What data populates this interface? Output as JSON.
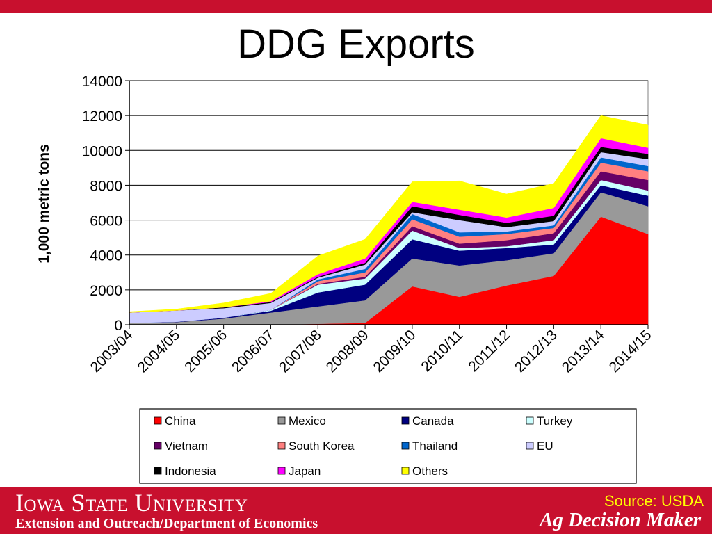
{
  "slide": {
    "title": "DDG Exports",
    "university": "Iowa State University",
    "department": "Extension and Outreach/Department of Economics",
    "source": "Source: USDA",
    "brand": "Ag Decision Maker",
    "accent_color": "#c8102e"
  },
  "chart_data": {
    "type": "area",
    "stacked": true,
    "title": "",
    "xlabel": "",
    "ylabel": "1,000 metric tons",
    "ylim": [
      0,
      14000
    ],
    "yticks": [
      0,
      2000,
      4000,
      6000,
      8000,
      10000,
      12000,
      14000
    ],
    "grid": true,
    "legend_position": "bottom",
    "categories": [
      "2003/04",
      "2004/05",
      "2005/06",
      "2006/07",
      "2007/08",
      "2008/09",
      "2009/10",
      "2010/11",
      "2011/12",
      "2012/13",
      "2013/14",
      "2014/15"
    ],
    "series": [
      {
        "name": "China",
        "color": "#ff0000",
        "values": [
          0,
          0,
          0,
          0,
          50,
          100,
          2200,
          1600,
          2250,
          2800,
          6200,
          5200
        ]
      },
      {
        "name": "Mexico",
        "color": "#999999",
        "values": [
          100,
          150,
          350,
          700,
          1000,
          1300,
          1600,
          1800,
          1450,
          1300,
          1400,
          1600
        ]
      },
      {
        "name": "Canada",
        "color": "#000080",
        "values": [
          0,
          20,
          50,
          100,
          800,
          900,
          1100,
          850,
          700,
          500,
          400,
          600
        ]
      },
      {
        "name": "Turkey",
        "color": "#ccffff",
        "values": [
          0,
          0,
          0,
          50,
          450,
          350,
          500,
          150,
          100,
          250,
          300,
          300
        ]
      },
      {
        "name": "Vietnam",
        "color": "#660066",
        "values": [
          0,
          0,
          0,
          0,
          50,
          100,
          250,
          250,
          350,
          400,
          500,
          600
        ]
      },
      {
        "name": "South Korea",
        "color": "#ff8080",
        "values": [
          0,
          0,
          0,
          0,
          150,
          250,
          400,
          400,
          350,
          300,
          500,
          500
        ]
      },
      {
        "name": "Thailand",
        "color": "#0066cc",
        "values": [
          0,
          0,
          0,
          0,
          100,
          200,
          300,
          250,
          150,
          150,
          300,
          300
        ]
      },
      {
        "name": "EU",
        "color": "#ccccff",
        "values": [
          600,
          650,
          550,
          400,
          100,
          250,
          100,
          700,
          250,
          250,
          300,
          400
        ]
      },
      {
        "name": "Indonesia",
        "color": "#000000",
        "values": [
          0,
          0,
          50,
          50,
          50,
          100,
          350,
          300,
          250,
          300,
          300,
          300
        ]
      },
      {
        "name": "Japan",
        "color": "#ff00ff",
        "values": [
          0,
          0,
          0,
          50,
          150,
          250,
          250,
          300,
          300,
          450,
          500,
          350
        ]
      },
      {
        "name": "Others",
        "color": "#ffff00",
        "values": [
          50,
          80,
          250,
          450,
          1050,
          1100,
          1150,
          1650,
          1350,
          1400,
          1300,
          1300
        ]
      }
    ]
  }
}
